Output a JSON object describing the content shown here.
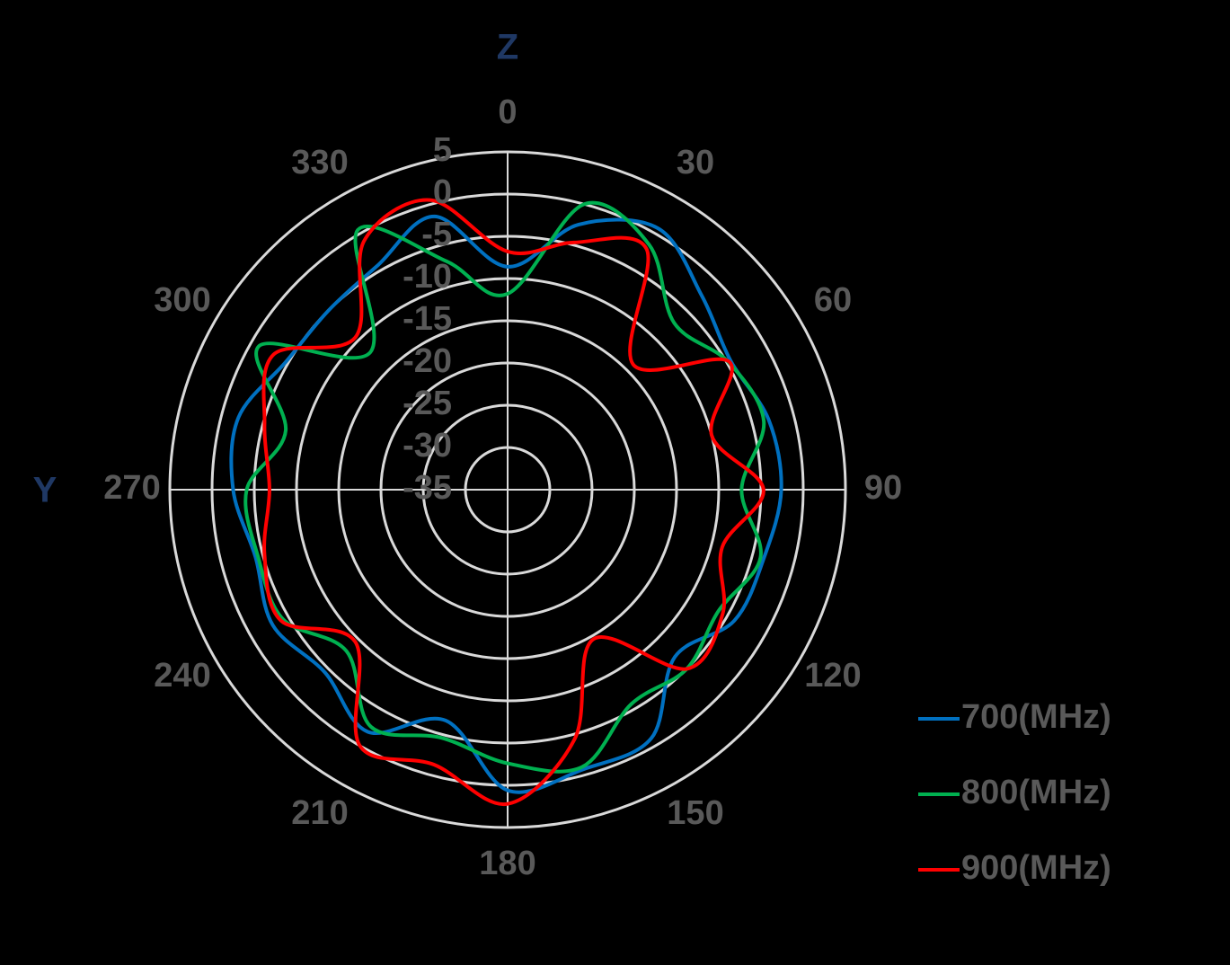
{
  "chart_data": {
    "type": "polar",
    "x_label": "Y",
    "y_label": "Z",
    "theta": [
      0,
      15,
      30,
      45,
      60,
      75,
      90,
      105,
      120,
      135,
      150,
      165,
      180,
      195,
      210,
      225,
      240,
      255,
      270,
      285,
      300,
      315,
      330,
      345
    ],
    "thetaticks": [
      0,
      30,
      60,
      90,
      120,
      150,
      180,
      210,
      240,
      270,
      300,
      330
    ],
    "rlim": [
      -35,
      5
    ],
    "rticks": [
      -35,
      -30,
      -25,
      -20,
      -15,
      -10,
      -5,
      0,
      5
    ],
    "grid": true,
    "series": [
      {
        "name": "700(MHz)",
        "color": "#0070c0",
        "values": [
          -8.6,
          -2.5,
          0.7,
          -2.5,
          -4.5,
          -3,
          -2.6,
          -3.6,
          -4,
          -7,
          -1,
          -0.7,
          0.6,
          -6.7,
          -1.9,
          -4.4,
          -2.9,
          -4.1,
          -2.5,
          -2,
          -4.7,
          -5,
          -4.3,
          -1.5
        ]
      },
      {
        "name": "800(MHz)",
        "color": "#00b050",
        "values": [
          -11.8,
          0,
          -1.5,
          -7.1,
          -4.8,
          -3.6,
          -7.3,
          -4,
          -6.2,
          -5,
          -5.7,
          -1,
          -2.6,
          -4.6,
          -2.6,
          -8,
          -4.3,
          -4.4,
          -4.1,
          -7.8,
          -1,
          -12,
          0.5,
          -7
        ]
      },
      {
        "name": "900(MHz)",
        "color": "#ff0000",
        "values": [
          -6.8,
          -4.7,
          -2.1,
          -14,
          -4.7,
          -10,
          -4.7,
          -8.7,
          -5.6,
          -5,
          -14.6,
          -4.4,
          2.2,
          -1.3,
          0,
          -9.5,
          -4,
          -5.2,
          -6.8,
          -5.2,
          -3,
          -9.5,
          -1,
          0.5
        ]
      }
    ]
  }
}
